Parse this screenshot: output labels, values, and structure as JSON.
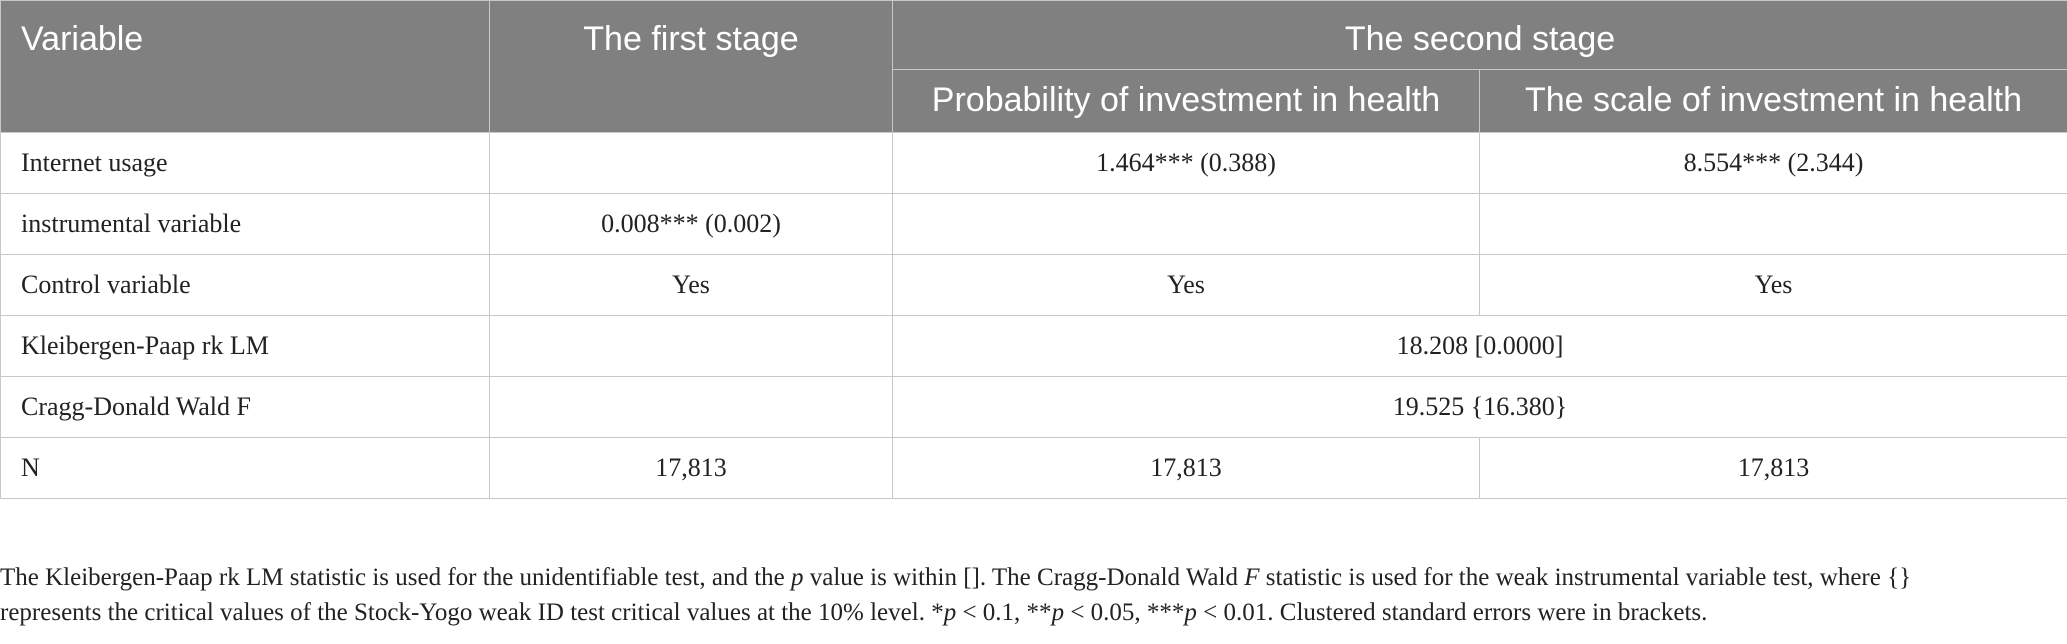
{
  "table": {
    "header": {
      "variable": "Variable",
      "first_stage": "The first stage",
      "second_stage": "The second stage",
      "prob_investment": "Probability of investment in health",
      "scale_investment": "The scale of investment in health"
    },
    "rows": [
      {
        "label": "Internet usage",
        "first": "",
        "prob": "1.464*** (0.388)",
        "scale": "8.554*** (2.344)"
      },
      {
        "label": "instrumental variable",
        "first": "0.008*** (0.002)",
        "prob": "",
        "scale": ""
      },
      {
        "label": "Control variable",
        "first": "Yes",
        "prob": "Yes",
        "scale": "Yes"
      },
      {
        "label": "Kleibergen-Paap rk LM",
        "first": "",
        "merged": "18.208 [0.0000]"
      },
      {
        "label": "Cragg-Donald Wald F",
        "first": "",
        "merged": "19.525 {16.380}"
      },
      {
        "label": "N",
        "first": "17,813",
        "prob": "17,813",
        "scale": "17,813"
      }
    ]
  },
  "note": {
    "line1": "The Kleibergen-Paap rk LM statistic is used for the unidentifiable test, and the ",
    "line1_p": "p",
    "line1_b": " value is within []. The Cragg-Donald Wald ",
    "line1_F": "F",
    "line1_c": " statistic is used for the weak instrumental variable test, where {}",
    "line2a": "represents the critical values of the Stock-Yogo weak ID test critical values at the 10% level. *",
    "p1": "p",
    "line2b": " < 0.1, **",
    "p2": "p",
    "line2c": " < 0.05, ***",
    "p3": "p",
    "line2d": " < 0.01. Clustered standard errors were in brackets."
  }
}
